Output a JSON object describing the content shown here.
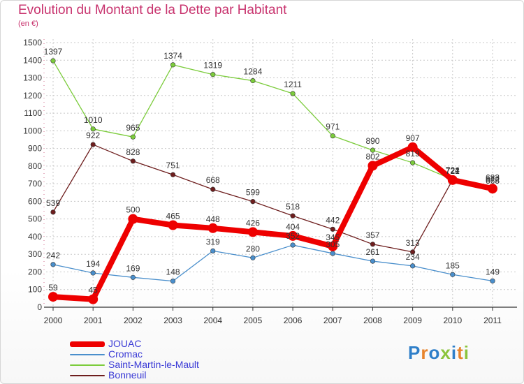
{
  "header": {
    "title": "Evolution du Montant de la Dette par Habitant",
    "subtitle": "(en €)"
  },
  "logo": {
    "text": "Proxiti"
  },
  "chart_data": {
    "type": "line",
    "title": "Evolution du Montant de la Dette par Habitant",
    "ylabel": "(en €)",
    "ylim": [
      0,
      1500
    ],
    "yticks": [
      0,
      100,
      200,
      300,
      400,
      500,
      600,
      700,
      800,
      900,
      1000,
      1100,
      1200,
      1300,
      1400,
      1500
    ],
    "grid": true,
    "legend": "bottom-left",
    "x": [
      2000,
      2001,
      2002,
      2003,
      2004,
      2005,
      2006,
      2007,
      2008,
      2009,
      2010,
      2011
    ],
    "series": [
      {
        "name": "Cromac",
        "color": "#4a8fcc",
        "values": [
          242,
          194,
          169,
          148,
          319,
          280,
          352,
          305,
          261,
          234,
          185,
          149
        ]
      },
      {
        "name": "Saint-Martin-le-Mault",
        "color": "#7ccc3c",
        "values": [
          1397,
          1010,
          965,
          1374,
          1319,
          1284,
          1211,
          971,
          890,
          819,
          724,
          683
        ]
      },
      {
        "name": "Bonneuil",
        "color": "#6e1e1e",
        "values": [
          539,
          922,
          828,
          751,
          668,
          599,
          518,
          442,
          357,
          313,
          722,
          665
        ]
      },
      {
        "name": "JOUAC",
        "color": "#ee0000",
        "values": [
          59,
          45,
          500,
          465,
          448,
          426,
          404,
          345,
          802,
          907,
          721,
          672
        ]
      }
    ]
  }
}
